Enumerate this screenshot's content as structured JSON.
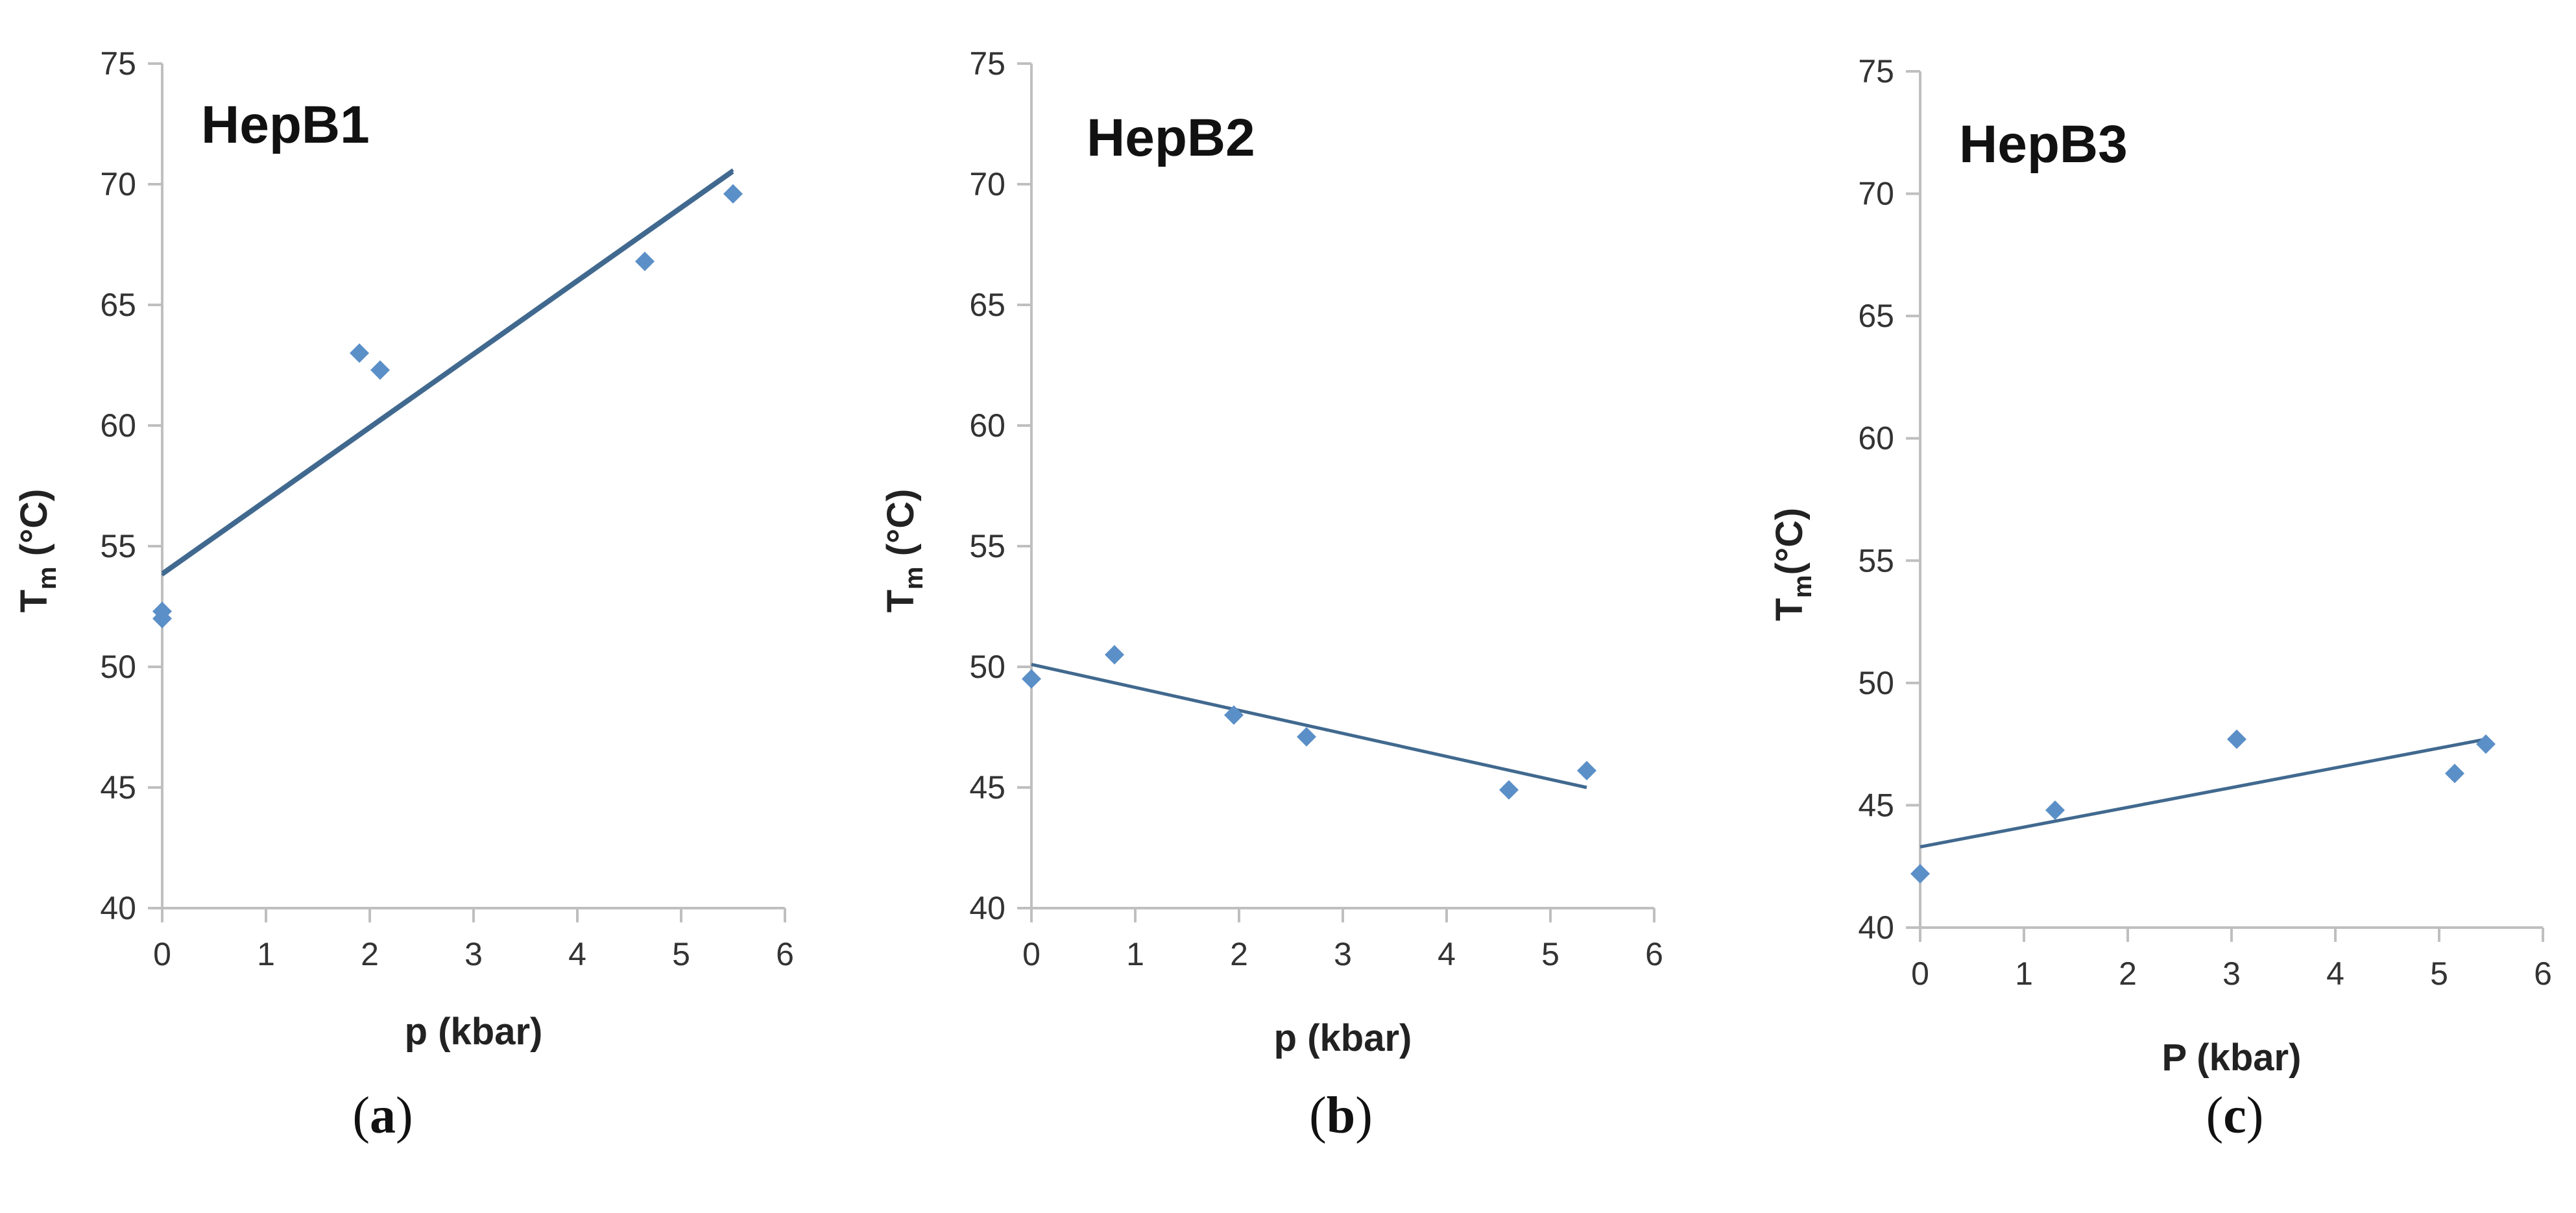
{
  "colors": {
    "marker": "#5B8FC7",
    "trendline": "#41698F",
    "axis": "#BFBFBF",
    "text": "#222222"
  },
  "chart_data": [
    {
      "type": "scatter",
      "panel_label": "a",
      "title": "HepB1",
      "xlabel": "p (kbar)",
      "ylabel": {
        "main": "T",
        "sub": "m",
        "rest": " (°C)"
      },
      "xlim": [
        0,
        6
      ],
      "ylim": [
        40,
        75
      ],
      "xticks": [
        "0",
        "1",
        "2",
        "3",
        "4",
        "5",
        "6"
      ],
      "yticks": [
        "40",
        "45",
        "50",
        "55",
        "60",
        "65",
        "70",
        "75"
      ],
      "points": [
        {
          "x": 0.0,
          "y": 52.3
        },
        {
          "x": 0.0,
          "y": 52.0
        },
        {
          "x": 1.9,
          "y": 63.0
        },
        {
          "x": 2.1,
          "y": 62.3
        },
        {
          "x": 4.65,
          "y": 66.8
        },
        {
          "x": 5.5,
          "y": 69.6
        }
      ],
      "trendlines": [
        {
          "x1": 0.0,
          "y1": 53.9,
          "x2": 5.5,
          "y2": 70.6
        },
        {
          "x1": 0.0,
          "y1": 53.8,
          "x2": 5.5,
          "y2": 70.5
        }
      ]
    },
    {
      "type": "scatter",
      "panel_label": "b",
      "title": "HepB2",
      "xlabel": "p (kbar)",
      "ylabel": {
        "main": "T",
        "sub": "m",
        "rest": " (°C)"
      },
      "xlim": [
        0,
        6
      ],
      "ylim": [
        40,
        75
      ],
      "xticks": [
        "0",
        "1",
        "2",
        "3",
        "4",
        "5",
        "6"
      ],
      "yticks": [
        "40",
        "45",
        "50",
        "55",
        "60",
        "65",
        "70",
        "75"
      ],
      "points": [
        {
          "x": 0.0,
          "y": 49.5
        },
        {
          "x": 0.8,
          "y": 50.5
        },
        {
          "x": 1.95,
          "y": 48.0
        },
        {
          "x": 2.65,
          "y": 47.1
        },
        {
          "x": 4.6,
          "y": 44.9
        },
        {
          "x": 5.35,
          "y": 45.7
        }
      ],
      "trendlines": [
        {
          "x1": 0.0,
          "y1": 50.1,
          "x2": 5.35,
          "y2": 45.0
        }
      ]
    },
    {
      "type": "scatter",
      "panel_label": "c",
      "title": "HepB3",
      "xlabel": "P (kbar)",
      "ylabel": {
        "main": "T",
        "sub": "m",
        "rest": "(°C)"
      },
      "xlim": [
        0,
        6
      ],
      "ylim": [
        40,
        75
      ],
      "xticks": [
        "0",
        "1",
        "2",
        "3",
        "4",
        "5",
        "6"
      ],
      "yticks": [
        "40",
        "45",
        "50",
        "55",
        "60",
        "65",
        "70",
        "75"
      ],
      "points": [
        {
          "x": 0.0,
          "y": 42.2
        },
        {
          "x": 1.3,
          "y": 44.8
        },
        {
          "x": 3.05,
          "y": 47.7
        },
        {
          "x": 5.15,
          "y": 46.3
        },
        {
          "x": 5.45,
          "y": 47.5
        }
      ],
      "trendlines": [
        {
          "x1": 0.0,
          "y1": 43.3,
          "x2": 5.45,
          "y2": 47.7
        }
      ]
    }
  ]
}
